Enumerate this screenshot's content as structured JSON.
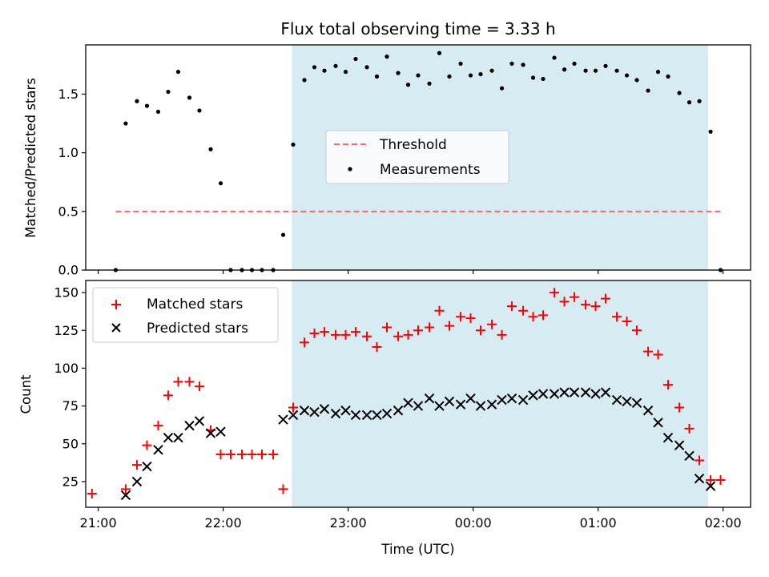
{
  "chart_data": {
    "type": "scatter",
    "title": "Flux total observing time = 3.33 h",
    "xlabel": "Time (UTC)",
    "x_tick_labels": [
      "21:00",
      "22:00",
      "23:00",
      "00:00",
      "01:00",
      "02:00"
    ],
    "x_tick_hours": [
      0,
      1,
      2,
      3,
      4,
      5
    ],
    "x_domain_hours": [
      -0.1,
      5.22
    ],
    "observing_window_hours": [
      1.55,
      4.88
    ],
    "window_color": "#add8e6",
    "panels": [
      {
        "ylabel": "Matched/Predicted stars",
        "ylim": [
          0,
          1.92
        ],
        "y_ticks": [
          0,
          0.5,
          1.0,
          1.5
        ],
        "y_tick_labels": [
          "0.0",
          "0.5",
          "1.0",
          "1.5"
        ],
        "legend_position": "center",
        "series": [
          {
            "name": "Threshold",
            "kind": "dashed-line",
            "color": "#ff6666",
            "x": [
              0.14,
              5.0
            ],
            "y": [
              0.5,
              0.5
            ]
          },
          {
            "name": "Measurements",
            "kind": "dot",
            "color": "#000000",
            "x": [
              0.14,
              0.22,
              0.31,
              0.39,
              0.48,
              0.56,
              0.64,
              0.73,
              0.81,
              0.9,
              0.98,
              1.06,
              1.15,
              1.23,
              1.31,
              1.4,
              1.48,
              1.56,
              1.65,
              1.73,
              1.81,
              1.9,
              1.98,
              2.06,
              2.15,
              2.23,
              2.31,
              2.4,
              2.48,
              2.56,
              2.65,
              2.73,
              2.81,
              2.9,
              2.98,
              3.06,
              3.15,
              3.23,
              3.31,
              3.4,
              3.48,
              3.56,
              3.65,
              3.73,
              3.81,
              3.9,
              3.98,
              4.06,
              4.15,
              4.23,
              4.31,
              4.4,
              4.48,
              4.56,
              4.65,
              4.73,
              4.81,
              4.9,
              4.98
            ],
            "y": [
              0,
              1.25,
              1.44,
              1.4,
              1.35,
              1.52,
              1.69,
              1.47,
              1.36,
              1.03,
              0.74,
              0,
              0,
              0,
              0,
              0,
              0.3,
              1.07,
              1.62,
              1.73,
              1.7,
              1.74,
              1.69,
              1.8,
              1.73,
              1.65,
              1.82,
              1.68,
              1.58,
              1.66,
              1.59,
              1.85,
              1.65,
              1.76,
              1.66,
              1.67,
              1.7,
              1.55,
              1.76,
              1.75,
              1.64,
              1.63,
              1.81,
              1.71,
              1.76,
              1.7,
              1.7,
              1.74,
              1.7,
              1.66,
              1.62,
              1.53,
              1.69,
              1.65,
              1.51,
              1.43,
              1.44,
              1.18,
              0
            ]
          }
        ]
      },
      {
        "ylabel": "Count",
        "ylim": [
          8,
          158
        ],
        "y_ticks": [
          25,
          50,
          75,
          100,
          125,
          150
        ],
        "y_tick_labels": [
          "25",
          "50",
          "75",
          "100",
          "125",
          "150"
        ],
        "legend_position": "upper left",
        "series": [
          {
            "name": "Matched stars",
            "kind": "plus",
            "color": "#ff0000",
            "x": [
              -0.05,
              0.22,
              0.31,
              0.39,
              0.48,
              0.56,
              0.64,
              0.73,
              0.81,
              0.9,
              0.98,
              1.06,
              1.15,
              1.23,
              1.31,
              1.4,
              1.48,
              1.56,
              1.65,
              1.73,
              1.81,
              1.9,
              1.98,
              2.06,
              2.15,
              2.23,
              2.31,
              2.4,
              2.48,
              2.56,
              2.65,
              2.73,
              2.81,
              2.9,
              2.98,
              3.06,
              3.15,
              3.23,
              3.31,
              3.4,
              3.48,
              3.56,
              3.65,
              3.73,
              3.81,
              3.9,
              3.98,
              4.06,
              4.15,
              4.23,
              4.31,
              4.4,
              4.48,
              4.56,
              4.65,
              4.73,
              4.81,
              4.9,
              4.98
            ],
            "y": [
              17,
              20,
              36,
              49,
              62,
              82,
              91,
              91,
              88,
              59,
              43,
              43,
              43,
              43,
              43,
              43,
              20,
              74,
              117,
              123,
              124,
              122,
              122,
              124,
              121,
              114,
              127,
              121,
              122,
              125,
              127,
              138,
              128,
              134,
              133,
              125,
              129,
              122,
              141,
              138,
              134,
              135,
              150,
              144,
              147,
              142,
              141,
              146,
              134,
              131,
              125,
              111,
              109,
              89,
              74,
              60,
              39,
              26,
              26
            ]
          },
          {
            "name": "Predicted stars",
            "kind": "x",
            "color": "#000000",
            "x": [
              0.22,
              0.31,
              0.39,
              0.48,
              0.56,
              0.64,
              0.73,
              0.81,
              0.9,
              0.98,
              1.48,
              1.56,
              1.65,
              1.73,
              1.81,
              1.9,
              1.98,
              2.06,
              2.15,
              2.23,
              2.31,
              2.4,
              2.48,
              2.56,
              2.65,
              2.73,
              2.81,
              2.9,
              2.98,
              3.06,
              3.15,
              3.23,
              3.31,
              3.4,
              3.48,
              3.56,
              3.65,
              3.73,
              3.81,
              3.9,
              3.98,
              4.06,
              4.15,
              4.23,
              4.31,
              4.4,
              4.48,
              4.56,
              4.65,
              4.73,
              4.81,
              4.9
            ],
            "y": [
              16,
              25,
              35,
              46,
              54,
              54,
              62,
              65,
              57,
              58,
              66,
              69,
              72,
              71,
              73,
              70,
              72,
              69,
              69,
              69,
              70,
              72,
              77,
              75,
              80,
              75,
              78,
              76,
              80,
              75,
              76,
              79,
              80,
              79,
              82,
              83,
              83,
              84,
              84,
              84,
              83,
              84,
              79,
              78,
              77,
              72,
              64,
              54,
              49,
              42,
              27,
              22
            ]
          }
        ]
      }
    ]
  }
}
